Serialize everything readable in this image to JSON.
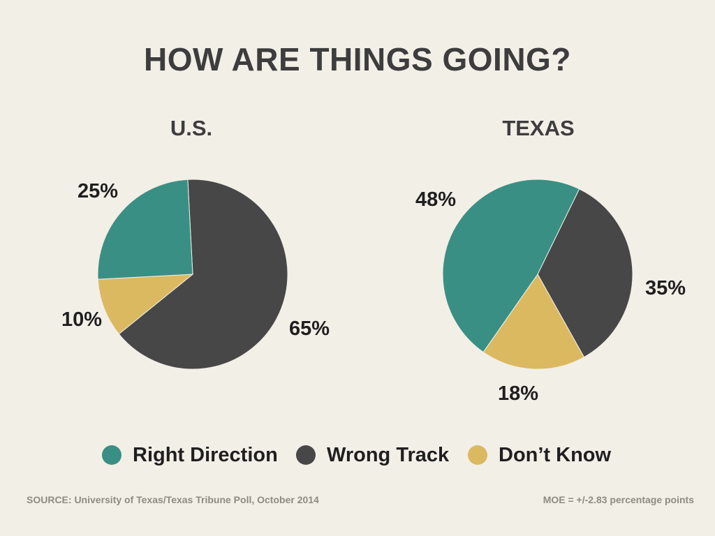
{
  "title": "HOW ARE THINGS GOING?",
  "colors": {
    "right_direction": "#3a8f84",
    "wrong_track": "#474747",
    "dont_know": "#dbb961",
    "background": "#f2efe7"
  },
  "chart_data": [
    {
      "type": "pie",
      "title": "U.S.",
      "slices": [
        {
          "label": "Right Direction",
          "value": 25,
          "display": "25%",
          "color": "#3a8f84"
        },
        {
          "label": "Wrong Track",
          "value": 65,
          "display": "65%",
          "color": "#474747"
        },
        {
          "label": "Don't Know",
          "value": 10,
          "display": "10%",
          "color": "#dbb961"
        }
      ]
    },
    {
      "type": "pie",
      "title": "TEXAS",
      "slices": [
        {
          "label": "Right Direction",
          "value": 48,
          "display": "48%",
          "color": "#3a8f84"
        },
        {
          "label": "Wrong Track",
          "value": 35,
          "display": "35%",
          "color": "#474747"
        },
        {
          "label": "Don't Know",
          "value": 18,
          "display": "18%",
          "color": "#dbb961"
        }
      ]
    }
  ],
  "legend": [
    {
      "label": "Right Direction",
      "color": "#3a8f84"
    },
    {
      "label": "Wrong Track",
      "color": "#474747"
    },
    {
      "label": "Don’t Know",
      "color": "#dbb961"
    }
  ],
  "footer": {
    "source": "SOURCE: University of Texas/Texas Tribune Poll, October 2014",
    "moe": "MOE = +/-2.83 percentage points"
  }
}
